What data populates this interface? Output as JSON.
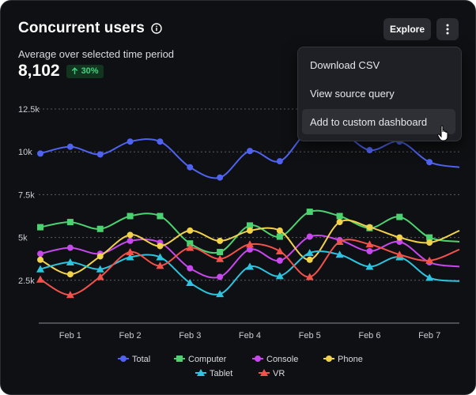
{
  "header": {
    "title": "Concurrent users",
    "subtitle": "Average over selected time period",
    "metric_value": "8,102",
    "change_badge": "30%",
    "change_direction": "up"
  },
  "toolbar": {
    "explore_label": "Explore",
    "more_icon": "more-vertical-icon",
    "info_icon": "info-icon"
  },
  "menu": {
    "items": [
      {
        "label": "Download CSV"
      },
      {
        "label": "View source query"
      },
      {
        "label": "Add to custom dashboard"
      }
    ],
    "hovered_index": 2
  },
  "colors": {
    "Total": "#4f63f0",
    "Computer": "#4cd371",
    "Console": "#c748ec",
    "Phone": "#f2d24b",
    "Tablet": "#2ec4df",
    "VR": "#f1524b",
    "badge_text": "#45d27c",
    "background": "#0f1013"
  },
  "chart_data": {
    "type": "line",
    "x": [
      "Jan 31",
      "Feb 1",
      "Feb 1.5",
      "Feb 2",
      "Feb 2.5",
      "Feb 3",
      "Feb 3.5",
      "Feb 4",
      "Feb 4.5",
      "Feb 5",
      "Feb 5.5",
      "Feb 6",
      "Feb 6.5",
      "Feb 7",
      "Feb 7.5"
    ],
    "x_tick_labels": [
      "Feb 1",
      "Feb 2",
      "Feb 3",
      "Feb 4",
      "Feb 5",
      "Feb 6",
      "Feb 7"
    ],
    "y_ticks": [
      "2.5k",
      "5k",
      "7.5k",
      "10k",
      "12.5k"
    ],
    "ylim": [
      0,
      12500
    ],
    "grid": true,
    "legend_placement": "bottom",
    "series": [
      {
        "name": "Total",
        "marker": "circle",
        "values": [
          9900,
          10300,
          9850,
          10600,
          10600,
          9100,
          8500,
          10050,
          9450,
          11300,
          11200,
          10100,
          10600,
          9400,
          9100
        ]
      },
      {
        "name": "Computer",
        "marker": "square",
        "values": [
          5600,
          5900,
          5500,
          6250,
          6250,
          4650,
          4150,
          5700,
          5050,
          6500,
          6250,
          5550,
          6200,
          5000,
          4750
        ]
      },
      {
        "name": "Console",
        "marker": "circle",
        "values": [
          4050,
          4400,
          4050,
          4800,
          4700,
          3200,
          2700,
          4300,
          3650,
          5050,
          4850,
          4200,
          4750,
          3550,
          3300
        ]
      },
      {
        "name": "Phone",
        "marker": "circle",
        "values": [
          3700,
          2850,
          3900,
          5150,
          4500,
          5400,
          4800,
          5400,
          5400,
          3700,
          5900,
          5600,
          5000,
          4700,
          5400
        ]
      },
      {
        "name": "Tablet",
        "marker": "triangle",
        "values": [
          3150,
          3550,
          3150,
          3850,
          3850,
          2350,
          1700,
          3300,
          2750,
          4100,
          4000,
          3300,
          3850,
          2650,
          2450
        ]
      },
      {
        "name": "VR",
        "marker": "triangle",
        "values": [
          2550,
          1650,
          2700,
          4150,
          3350,
          4400,
          3750,
          4600,
          4200,
          2700,
          4750,
          4600,
          4000,
          3650,
          4300
        ]
      }
    ]
  }
}
